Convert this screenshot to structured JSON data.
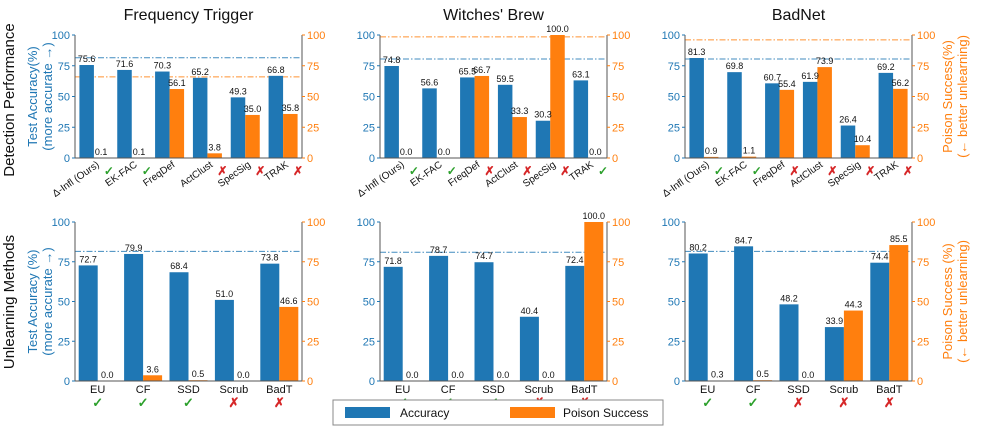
{
  "row_labels": [
    "Detection Performance",
    "Unlearning Methods"
  ],
  "legend": [
    {
      "label": "Accuracy",
      "color": "#1f77b4"
    },
    {
      "label": "Poison Success",
      "color": "#ff7f0e"
    }
  ],
  "chart_data": [
    {
      "type": "bar",
      "title": "Frequency Trigger",
      "categories": [
        "Δ-Infl (Ours)",
        "EK-FAC",
        "FreqDef",
        "ActClust",
        "SpecSig",
        "TRAK"
      ],
      "label_rotated": true,
      "series": [
        {
          "name": "Accuracy",
          "values": [
            75.6,
            71.6,
            70.3,
            65.2,
            49.3,
            66.8
          ]
        },
        {
          "name": "Poison Success",
          "values": [
            0.1,
            0.1,
            56.1,
            3.8,
            35.0,
            35.8
          ]
        }
      ],
      "marks": [
        "✓",
        "✓",
        "",
        "✗",
        "✗",
        "✗"
      ],
      "ref_lines": [
        {
          "value": 81.5,
          "color": "blue"
        },
        {
          "value": 66.0,
          "color": "orange"
        }
      ],
      "ylabel_left": [
        "Test Accuracy(%)",
        "(more accurate →)"
      ],
      "ylabel_right": [],
      "ylim": [
        0,
        100
      ],
      "yticks": [
        "0",
        "25",
        "50",
        "75",
        "100"
      ]
    },
    {
      "type": "bar",
      "title": "Witches' Brew",
      "categories": [
        "Δ-Infl (Ours)",
        "EK-FAC",
        "FreqDef",
        "ActClust",
        "SpecSig",
        "TRAK"
      ],
      "label_rotated": true,
      "series": [
        {
          "name": "Accuracy",
          "values": [
            74.8,
            56.6,
            65.5,
            59.5,
            30.3,
            63.1
          ]
        },
        {
          "name": "Poison Success",
          "values": [
            0.0,
            0.0,
            66.7,
            33.3,
            100.0,
            0.0
          ]
        }
      ],
      "marks": [
        "✓",
        "✓",
        "✗",
        "✗",
        "✗",
        "✓"
      ],
      "ref_lines": [
        {
          "value": 80.5,
          "color": "blue"
        },
        {
          "value": 98.5,
          "color": "orange"
        }
      ],
      "ylabel_left": [],
      "ylabel_right": [],
      "ylim": [
        0,
        100
      ],
      "yticks": [
        "0",
        "25",
        "50",
        "75",
        "100"
      ]
    },
    {
      "type": "bar",
      "title": "BadNet",
      "categories": [
        "Δ-Infl (Ours)",
        "EK-FAC",
        "FreqDef",
        "ActClust",
        "SpecSig",
        "TRAK"
      ],
      "label_rotated": true,
      "series": [
        {
          "name": "Accuracy",
          "values": [
            81.3,
            69.8,
            60.7,
            61.9,
            26.4,
            69.2
          ]
        },
        {
          "name": "Poison Success",
          "values": [
            0.9,
            1.1,
            55.4,
            73.9,
            10.4,
            56.2
          ]
        }
      ],
      "marks": [
        "✓",
        "✓",
        "✗",
        "✗",
        "✗",
        "✗"
      ],
      "ref_lines": [
        {
          "value": 80.5,
          "color": "blue"
        },
        {
          "value": 96.0,
          "color": "orange"
        }
      ],
      "ylabel_left": [],
      "ylabel_right": [
        "Poison Success(%)",
        "(← better unlearning)"
      ],
      "ylim": [
        0,
        100
      ],
      "yticks": [
        "0",
        "25",
        "50",
        "75",
        "100"
      ]
    },
    {
      "type": "bar",
      "title": "",
      "categories": [
        "EU",
        "CF",
        "SSD",
        "Scrub",
        "BadT"
      ],
      "label_rotated": false,
      "series": [
        {
          "name": "Accuracy",
          "values": [
            72.7,
            79.9,
            68.4,
            51.0,
            73.8
          ]
        },
        {
          "name": "Poison Success",
          "values": [
            0.0,
            3.6,
            0.5,
            0.0,
            46.6
          ]
        }
      ],
      "marks": [
        "✓",
        "✓",
        "✓",
        "✗",
        "✗"
      ],
      "ref_lines": [
        {
          "value": 81.5,
          "color": "blue"
        }
      ],
      "ylabel_left": [
        "Test Accuracy (%)",
        "(more accurate →)"
      ],
      "ylabel_right": [],
      "ylim": [
        0,
        100
      ],
      "yticks": [
        "0",
        "25",
        "50",
        "75",
        "100"
      ]
    },
    {
      "type": "bar",
      "title": "",
      "categories": [
        "EU",
        "CF",
        "SSD",
        "Scrub",
        "BadT"
      ],
      "label_rotated": false,
      "series": [
        {
          "name": "Accuracy",
          "values": [
            71.8,
            78.7,
            74.7,
            40.4,
            72.4
          ]
        },
        {
          "name": "Poison Success",
          "values": [
            0.0,
            0.0,
            0.0,
            0.0,
            100.0
          ]
        }
      ],
      "marks": [
        "✓",
        "✓",
        "✓",
        "✗",
        "✗"
      ],
      "ref_lines": [
        {
          "value": 81.0,
          "color": "blue"
        }
      ],
      "ylabel_left": [],
      "ylabel_right": [],
      "ylim": [
        0,
        100
      ],
      "yticks": [
        "0",
        "25",
        "50",
        "75",
        "100"
      ]
    },
    {
      "type": "bar",
      "title": "",
      "categories": [
        "EU",
        "CF",
        "SSD",
        "Scrub",
        "BadT"
      ],
      "label_rotated": false,
      "series": [
        {
          "name": "Accuracy",
          "values": [
            80.2,
            84.7,
            48.2,
            33.9,
            74.4
          ]
        },
        {
          "name": "Poison Success",
          "values": [
            0.3,
            0.5,
            0.0,
            44.3,
            85.5
          ]
        }
      ],
      "marks": [
        "✓",
        "✓",
        "✗",
        "✗",
        "✗"
      ],
      "ref_lines": [
        {
          "value": 81.5,
          "color": "blue"
        }
      ],
      "ylabel_left": [],
      "ylabel_right": [
        "Poison Success (%)",
        "(← better unlearning)"
      ],
      "ylim": [
        0,
        100
      ],
      "yticks": [
        "0",
        "25",
        "50",
        "75",
        "100"
      ]
    }
  ]
}
